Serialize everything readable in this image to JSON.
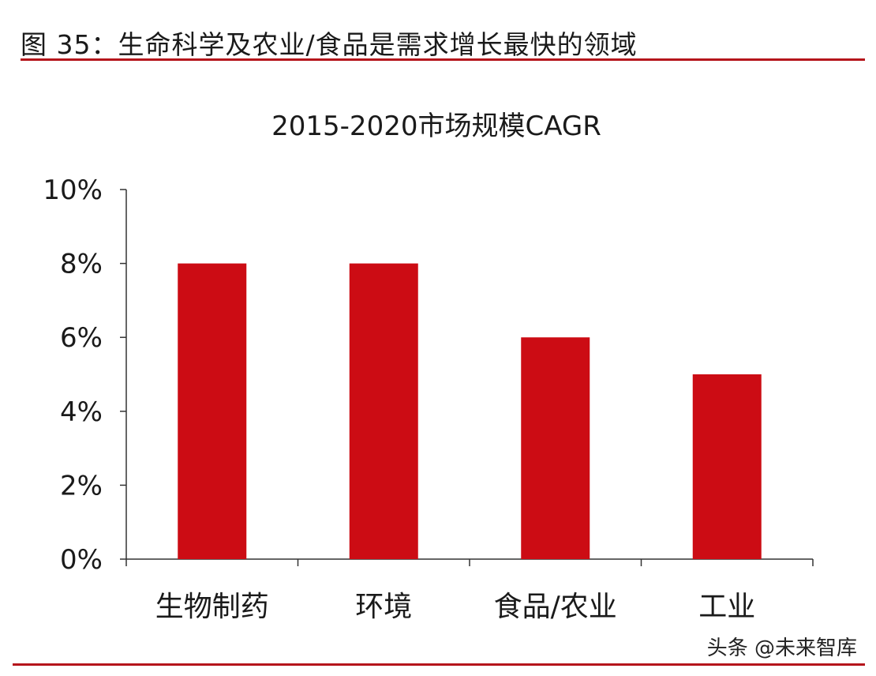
{
  "figure": {
    "title": "图 35：生命科学及农业/食品是需求增长最快的领域"
  },
  "watermark": "头条 @未来智库",
  "colors": {
    "bar": "#cc0c14",
    "rule": "#b5151b",
    "axis": "#333333",
    "text": "#1a1a1a"
  },
  "chart_data": {
    "type": "bar",
    "title": "2015-2020市场规模CAGR",
    "xlabel": "",
    "ylabel": "",
    "categories": [
      "生物制药",
      "环境",
      "食品/农业",
      "工业"
    ],
    "values": [
      8,
      8,
      6,
      5
    ],
    "ylim": [
      0,
      10
    ],
    "yticks": [
      0,
      2,
      4,
      6,
      8,
      10
    ],
    "ytick_labels": [
      "0%",
      "2%",
      "4%",
      "6%",
      "8%",
      "10%"
    ],
    "grid": false,
    "legend": "none"
  }
}
